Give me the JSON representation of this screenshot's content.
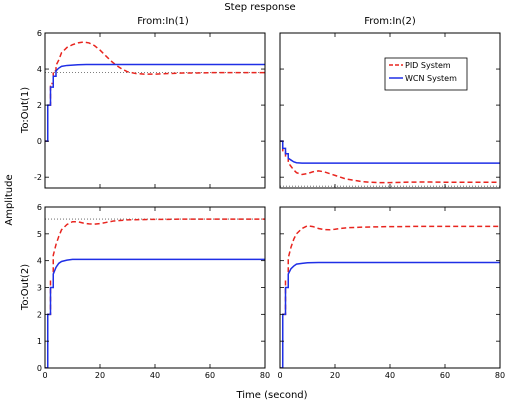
{
  "chart_data": {
    "type": "line",
    "title": "Step response",
    "xlabel": "Time (second)",
    "ylabel": "Amplitude",
    "grid": false,
    "legend": {
      "placement": "top-right of panel In(2)→Out(1)",
      "entries": [
        {
          "name": "PID System",
          "color": "#e8251f",
          "style": "dashed"
        },
        {
          "name": "WCN System",
          "color": "#1f2fe6",
          "style": "solid"
        }
      ]
    },
    "column_titles": [
      "From:In(1)",
      "From:In(2)"
    ],
    "row_titles": [
      "To:Out(1)",
      "To:Out(2)"
    ],
    "xlim": [
      0,
      80
    ],
    "xticks": [
      0,
      20,
      40,
      60,
      80
    ],
    "panels": [
      {
        "input": "In(1)",
        "output": "Out(1)",
        "ylim": [
          -2.6,
          6
        ],
        "yticks": [
          -2,
          0,
          2,
          4,
          6
        ],
        "reference": 3.8,
        "series": [
          {
            "name": "PID System",
            "x": [
              0,
              1,
              1,
              2,
              2,
              3,
              3,
              4,
              4,
              5,
              6,
              8,
              10,
              12,
              14,
              16,
              18,
              20,
              22,
              24,
              26,
              28,
              30,
              33,
              36,
              40,
              45,
              50,
              55,
              60,
              70,
              80
            ],
            "y": [
              0,
              0,
              2,
              2,
              3.2,
              3.2,
              3.9,
              3.9,
              4.2,
              4.5,
              4.9,
              5.2,
              5.35,
              5.45,
              5.5,
              5.45,
              5.3,
              5.05,
              4.75,
              4.45,
              4.2,
              4.0,
              3.85,
              3.75,
              3.72,
              3.72,
              3.75,
              3.78,
              3.78,
              3.8,
              3.8,
              3.8
            ]
          },
          {
            "name": "WCN System",
            "x": [
              0,
              1,
              1,
              2,
              2,
              3,
              3,
              4,
              4,
              5,
              6,
              8,
              10,
              12,
              15,
              20,
              30,
              40,
              60,
              80
            ],
            "y": [
              0,
              0,
              2,
              2,
              3.0,
              3.0,
              3.6,
              3.6,
              3.9,
              4.05,
              4.15,
              4.2,
              4.22,
              4.24,
              4.25,
              4.25,
              4.25,
              4.25,
              4.25,
              4.25
            ]
          }
        ]
      },
      {
        "input": "In(2)",
        "output": "Out(1)",
        "ylim": [
          -2.6,
          6
        ],
        "yticks": [
          -2,
          0,
          2,
          4,
          6
        ],
        "reference": -2.5,
        "series": [
          {
            "name": "PID System",
            "x": [
              0,
              1,
              1,
              2,
              2,
              3,
              3,
              4,
              5,
              6,
              8,
              10,
              12,
              14,
              16,
              18,
              20,
              22,
              24,
              26,
              28,
              30,
              33,
              36,
              40,
              45,
              50,
              55,
              60,
              70,
              80
            ],
            "y": [
              0,
              0,
              -0.6,
              -0.6,
              -0.9,
              -0.9,
              -1.2,
              -1.4,
              -1.6,
              -1.75,
              -1.85,
              -1.8,
              -1.7,
              -1.65,
              -1.7,
              -1.8,
              -1.9,
              -2.0,
              -2.1,
              -2.15,
              -2.2,
              -2.25,
              -2.28,
              -2.3,
              -2.3,
              -2.28,
              -2.27,
              -2.27,
              -2.28,
              -2.28,
              -2.28
            ]
          },
          {
            "name": "WCN System",
            "x": [
              0,
              1,
              1,
              2,
              2,
              3,
              3,
              4,
              5,
              6,
              8,
              10,
              14,
              20,
              40,
              60,
              80
            ],
            "y": [
              0,
              0,
              -0.4,
              -0.4,
              -0.7,
              -0.7,
              -0.95,
              -1.05,
              -1.15,
              -1.2,
              -1.22,
              -1.22,
              -1.22,
              -1.22,
              -1.22,
              -1.22,
              -1.22
            ]
          }
        ]
      },
      {
        "input": "In(1)",
        "output": "Out(2)",
        "ylim": [
          0,
          6
        ],
        "yticks": [
          0,
          1,
          2,
          3,
          4,
          5,
          6
        ],
        "reference": 5.55,
        "series": [
          {
            "name": "PID System",
            "x": [
              0,
              1,
              1,
              2,
              2,
              3,
              3,
              4,
              5,
              6,
              8,
              10,
              12,
              14,
              16,
              18,
              20,
              22,
              25,
              30,
              35,
              40,
              45,
              50,
              60,
              70,
              80
            ],
            "y": [
              0,
              0,
              2,
              2,
              3.3,
              3.3,
              4.2,
              4.6,
              4.9,
              5.15,
              5.35,
              5.45,
              5.45,
              5.4,
              5.37,
              5.36,
              5.38,
              5.42,
              5.48,
              5.52,
              5.53,
              5.54,
              5.54,
              5.55,
              5.55,
              5.55,
              5.55
            ]
          },
          {
            "name": "WCN System",
            "x": [
              0,
              1,
              1,
              2,
              2,
              3,
              3,
              4,
              5,
              6,
              8,
              10,
              14,
              20,
              40,
              60,
              80
            ],
            "y": [
              0,
              0,
              2,
              2,
              3.0,
              3.0,
              3.5,
              3.75,
              3.9,
              3.97,
              4.02,
              4.05,
              4.05,
              4.05,
              4.05,
              4.05,
              4.05
            ]
          }
        ]
      },
      {
        "input": "In(2)",
        "output": "Out(2)",
        "ylim": [
          0,
          6
        ],
        "yticks": [
          0,
          1,
          2,
          3,
          4,
          5,
          6
        ],
        "reference": null,
        "series": [
          {
            "name": "PID System",
            "x": [
              0,
              1,
              1,
              2,
              2,
              3,
              3,
              4,
              5,
              6,
              8,
              10,
              12,
              14,
              16,
              18,
              20,
              22,
              25,
              30,
              35,
              40,
              45,
              50,
              60,
              70,
              80
            ],
            "y": [
              0,
              0,
              2,
              2,
              3.3,
              3.3,
              4.1,
              4.5,
              4.8,
              5.0,
              5.2,
              5.3,
              5.27,
              5.2,
              5.16,
              5.15,
              5.17,
              5.2,
              5.23,
              5.25,
              5.26,
              5.27,
              5.27,
              5.28,
              5.28,
              5.28,
              5.28
            ]
          },
          {
            "name": "WCN System",
            "x": [
              0,
              1,
              1,
              2,
              2,
              3,
              3,
              4,
              5,
              6,
              8,
              10,
              14,
              20,
              40,
              60,
              80
            ],
            "y": [
              0,
              0,
              2,
              2,
              3.0,
              3.0,
              3.5,
              3.7,
              3.8,
              3.87,
              3.9,
              3.92,
              3.93,
              3.93,
              3.93,
              3.93,
              3.93
            ]
          }
        ]
      }
    ]
  }
}
